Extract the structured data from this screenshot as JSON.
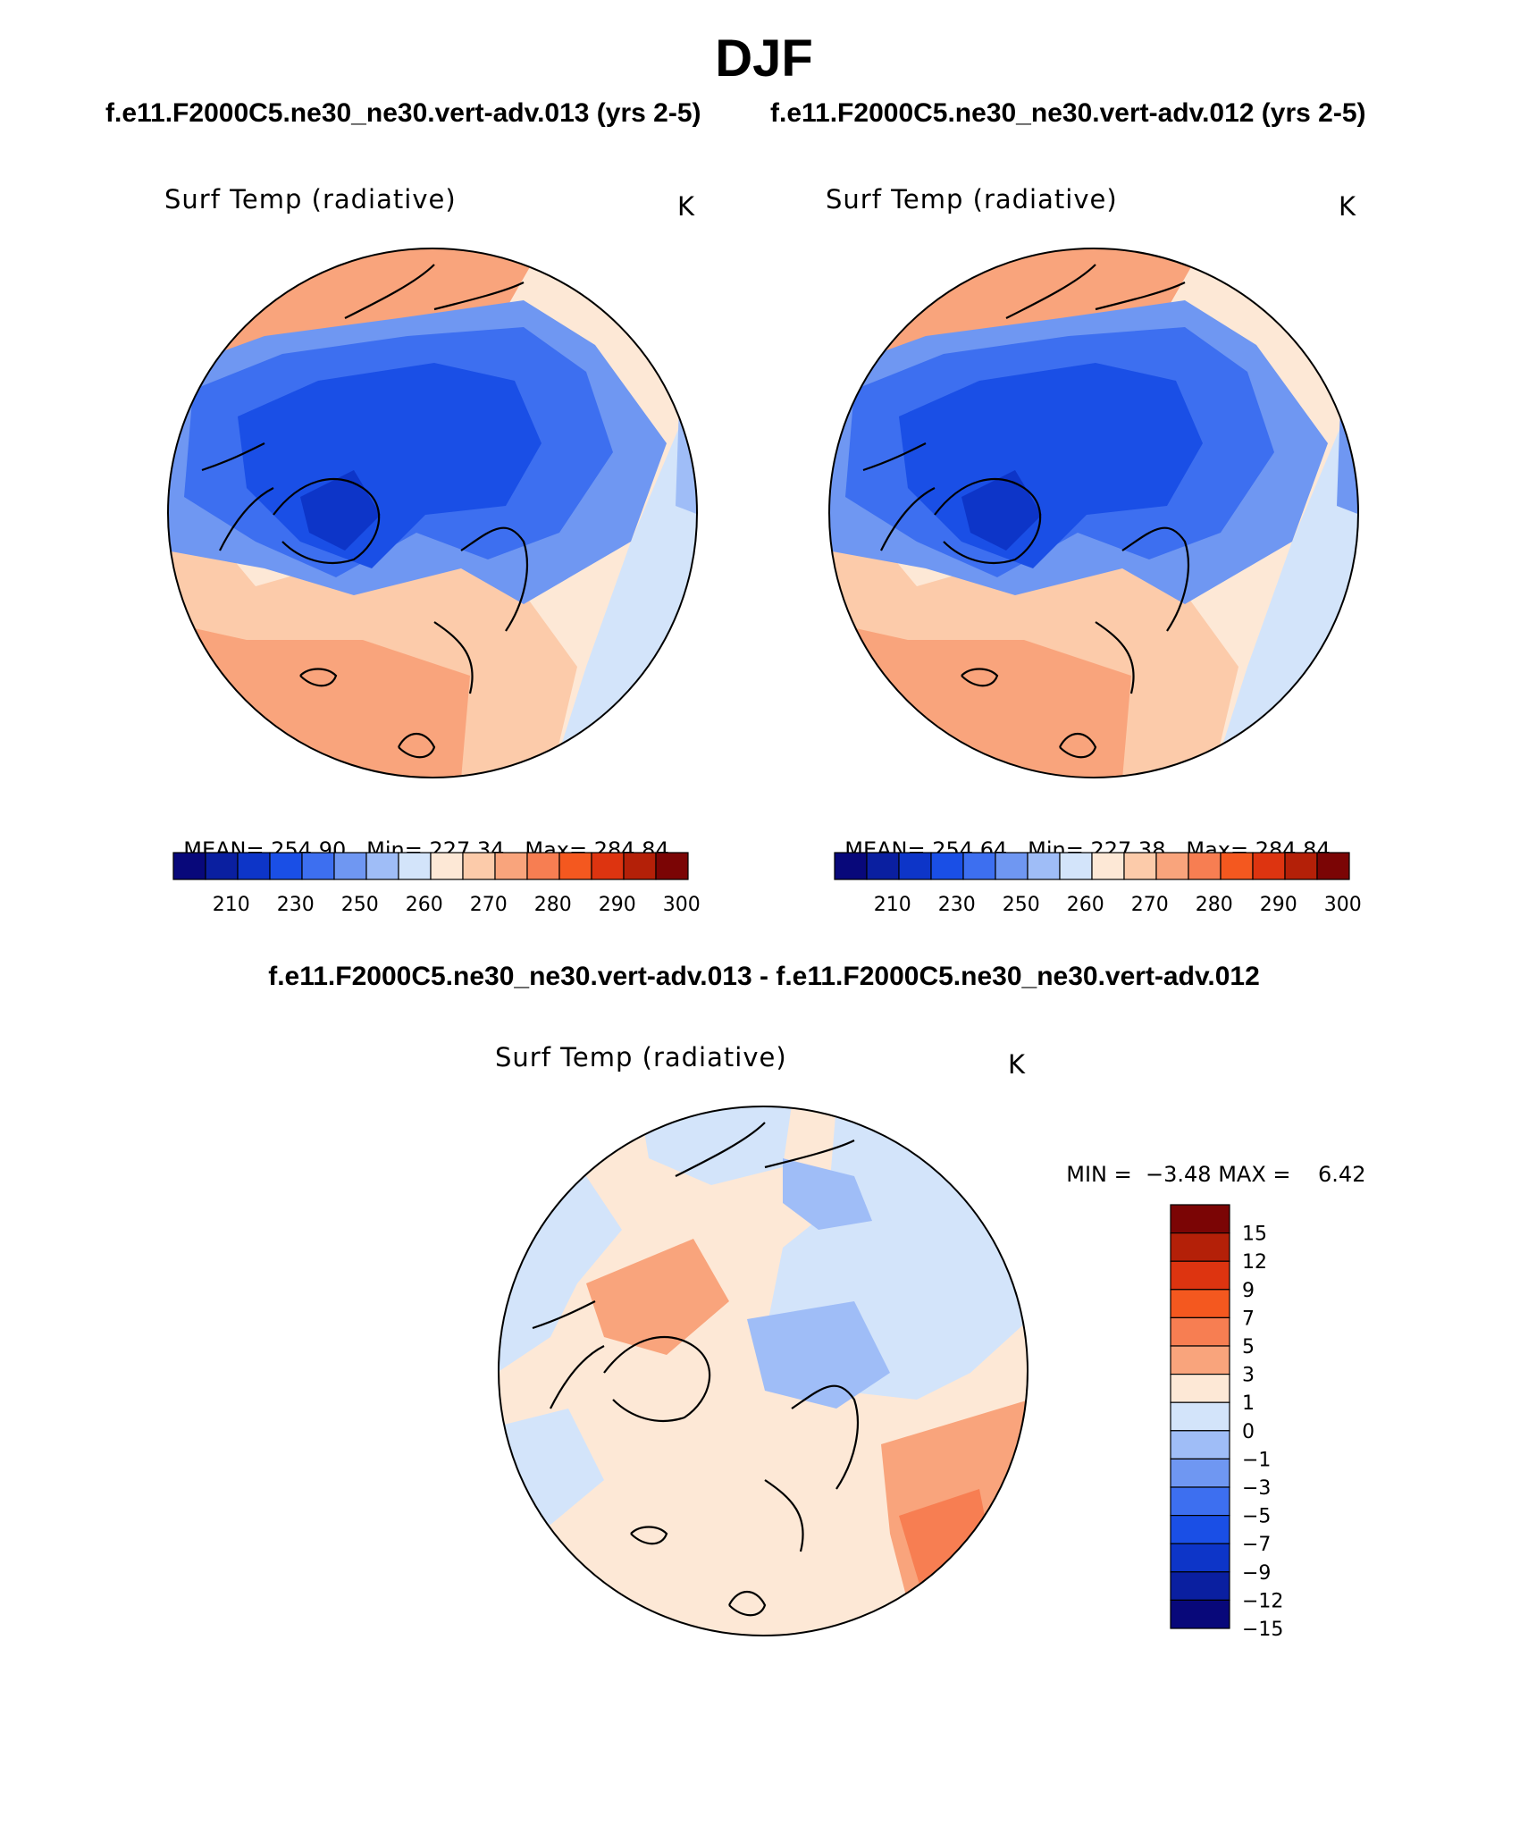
{
  "figure": {
    "title": "DJF",
    "case_left": "f.e11.F2000C5.ne30_ne30.vert-adv.013 (yrs 2-5)",
    "case_right": "f.e11.F2000C5.ne30_ne30.vert-adv.012 (yrs 2-5)",
    "diff_title": "f.e11.F2000C5.ne30_ne30.vert-adv.013 - f.e11.F2000C5.ne30_ne30.vert-adv.012"
  },
  "colors": {
    "abs_levels": [
      "#08087a",
      "#0a1fa0",
      "#0d35c8",
      "#1a4fe6",
      "#3d6ff0",
      "#6f97f2",
      "#9fbdf7",
      "#d3e4fa",
      "#fde8d6",
      "#fccbaa",
      "#f9a47c",
      "#f77e52",
      "#f4581f",
      "#dd3410",
      "#b42008",
      "#7b0505"
    ],
    "diff_levels": [
      "#7b0505",
      "#b42008",
      "#dd3410",
      "#f4581f",
      "#f77e52",
      "#f9a47c",
      "#fde8d6",
      "#d3e4fa",
      "#9fbdf7",
      "#6f97f2",
      "#3d6ff0",
      "#1a4fe6",
      "#0d35c8",
      "#0a1fa0",
      "#08087a"
    ]
  },
  "chart_data": [
    {
      "type": "map",
      "projection": "north-polar-stereographic",
      "season": "DJF",
      "variable": "Surf Temp (radiative)",
      "units": "K",
      "case": "f.e11.F2000C5.ne30_ne30.vert-adv.013 (yrs 2-5)",
      "stats": {
        "mean_label": "MEAN=",
        "mean": "254.90",
        "min_label": "Min=",
        "min": "227.34",
        "max_label": "Max=",
        "max": "284.84"
      },
      "colorbar_labels": [
        "210",
        "230",
        "250",
        "260",
        "270",
        "280",
        "290",
        "300"
      ],
      "colorbar_orientation": "horizontal"
    },
    {
      "type": "map",
      "projection": "north-polar-stereographic",
      "season": "DJF",
      "variable": "Surf Temp (radiative)",
      "units": "K",
      "case": "f.e11.F2000C5.ne30_ne30.vert-adv.012 (yrs 2-5)",
      "stats": {
        "mean_label": "MEAN=",
        "mean": "254.64",
        "min_label": "Min=",
        "min": "227.38",
        "max_label": "Max=",
        "max": "284.84"
      },
      "colorbar_labels": [
        "210",
        "230",
        "250",
        "260",
        "270",
        "280",
        "290",
        "300"
      ],
      "colorbar_orientation": "horizontal"
    },
    {
      "type": "map",
      "projection": "north-polar-stereographic",
      "season": "DJF",
      "variable": "Surf Temp (radiative)",
      "units": "K",
      "case": "f.e11.F2000C5.ne30_ne30.vert-adv.013 - f.e11.F2000C5.ne30_ne30.vert-adv.012",
      "stats": {
        "min_label": "MIN =",
        "min": "−3.48",
        "max_label": "MAX =",
        "max": "6.42"
      },
      "colorbar_labels": [
        "15",
        "12",
        "9",
        "7",
        "5",
        "3",
        "1",
        "0",
        "−1",
        "−3",
        "−5",
        "−7",
        "−9",
        "−12",
        "−15"
      ],
      "colorbar_orientation": "vertical"
    }
  ]
}
